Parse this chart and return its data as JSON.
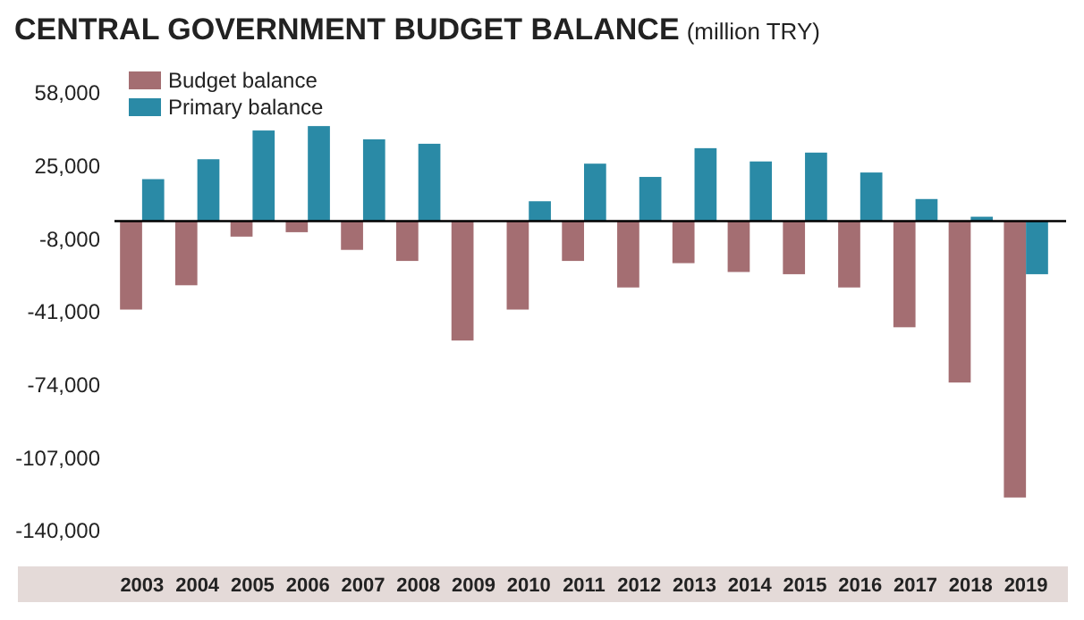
{
  "chart_data": {
    "type": "bar",
    "title": "CENTRAL GOVERNMENT BUDGET BALANCE",
    "subtitle": "(million TRY)",
    "categories": [
      "2003",
      "2004",
      "2005",
      "2006",
      "2007",
      "2008",
      "2009",
      "2010",
      "2011",
      "2012",
      "2013",
      "2014",
      "2015",
      "2016",
      "2017",
      "2018",
      "2019"
    ],
    "series": [
      {
        "name": "Budget balance",
        "color": "#a46e72",
        "values": [
          -40000,
          -29000,
          -7000,
          -5000,
          -13000,
          -18000,
          -54000,
          -40000,
          -18000,
          -30000,
          -19000,
          -23000,
          -24000,
          -30000,
          -48000,
          -73000,
          -125000
        ]
      },
      {
        "name": "Primary balance",
        "color": "#2a8aa6",
        "values": [
          19000,
          28000,
          41000,
          43000,
          37000,
          35000,
          0,
          9000,
          26000,
          20000,
          33000,
          27000,
          31000,
          22000,
          10000,
          2000,
          -24000
        ]
      }
    ],
    "ylim": [
      -140000,
      58000
    ],
    "yticks": [
      {
        "value": 58000,
        "label": "58,000"
      },
      {
        "value": 25000,
        "label": "25,000"
      },
      {
        "value": -8000,
        "label": "-8,000"
      },
      {
        "value": -41000,
        "label": "-41,000"
      },
      {
        "value": -74000,
        "label": "-74,000"
      },
      {
        "value": -107000,
        "label": "-107,000"
      },
      {
        "value": -140000,
        "label": "-140,000"
      }
    ],
    "grid": false,
    "legend": "top left"
  }
}
